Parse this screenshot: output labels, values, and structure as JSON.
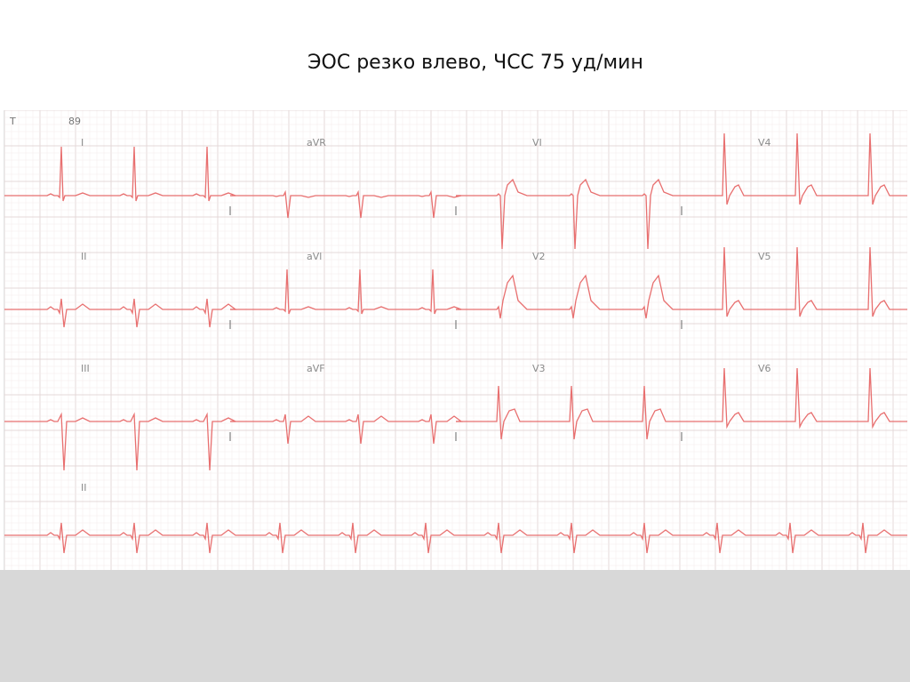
{
  "title": "ЭОС резко влево, ЧСС 75 уд/мин",
  "header": {
    "mark": "T",
    "number": "89"
  },
  "colors": {
    "trace": "#e86f6f",
    "grid_minor": "#f3eded",
    "grid_major": "#e4d9d9",
    "footer": "#d8d8d8"
  },
  "rows": [
    {
      "leads": [
        {
          "label": "I",
          "kind": "I"
        },
        {
          "label": "aVR",
          "kind": "aVR"
        },
        {
          "label": "VI",
          "kind": "V1"
        },
        {
          "label": "V4",
          "kind": "V4"
        }
      ]
    },
    {
      "leads": [
        {
          "label": "II",
          "kind": "II"
        },
        {
          "label": "aVl",
          "kind": "aVL"
        },
        {
          "label": "V2",
          "kind": "V2"
        },
        {
          "label": "V5",
          "kind": "V5"
        }
      ]
    },
    {
      "leads": [
        {
          "label": "III",
          "kind": "III"
        },
        {
          "label": "aVF",
          "kind": "aVF"
        },
        {
          "label": "V3",
          "kind": "V3"
        },
        {
          "label": "V6",
          "kind": "V6"
        }
      ]
    }
  ],
  "rhythm_strip": {
    "label": "II",
    "kind": "II-rhythm"
  }
}
